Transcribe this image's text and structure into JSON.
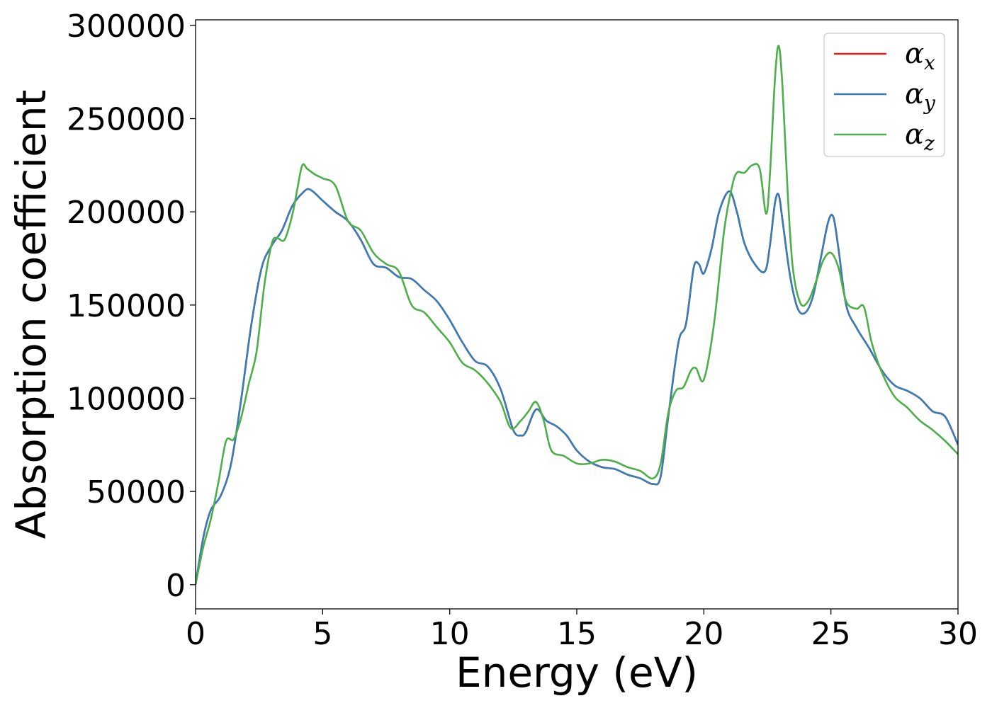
{
  "chart_data": {
    "type": "line",
    "title": "",
    "xlabel": "Energy (eV)",
    "ylabel": "Absorption coefficient",
    "xlim": [
      0,
      30
    ],
    "ylim": [
      -13000,
      303000
    ],
    "xticks": [
      0,
      5,
      10,
      15,
      20,
      25,
      30
    ],
    "yticks": [
      0,
      50000,
      100000,
      150000,
      200000,
      250000,
      300000
    ],
    "xtick_labels": [
      "0",
      "5",
      "10",
      "15",
      "20",
      "25",
      "30"
    ],
    "ytick_labels": [
      "0",
      "50000",
      "100000",
      "150000",
      "200000",
      "250000",
      "300000"
    ],
    "grid": false,
    "legend_position": "top-right",
    "legend": [
      {
        "symbol": "α",
        "sub": "x",
        "color": "#e41a1c"
      },
      {
        "symbol": "α",
        "sub": "y",
        "color": "#377eb8"
      },
      {
        "symbol": "α",
        "sub": "z",
        "color": "#4daf4a"
      }
    ],
    "series": [
      {
        "name": "αx",
        "color": "#e41a1c",
        "x": [
          0,
          0.3,
          0.6,
          1.0,
          1.4,
          1.8,
          2.2,
          2.6,
          3.0,
          3.4,
          3.8,
          4.2,
          4.5,
          5.0,
          5.5,
          6.0,
          6.5,
          7.0,
          7.5,
          8.0,
          8.5,
          9.0,
          9.5,
          10.0,
          10.5,
          11.0,
          11.5,
          12.0,
          12.5,
          12.8,
          13.0,
          13.4,
          13.8,
          14.2,
          14.6,
          15.0,
          15.5,
          16.0,
          16.5,
          17.0,
          17.5,
          18.0,
          18.3,
          18.6,
          19.0,
          19.3,
          19.6,
          19.8,
          20.0,
          20.3,
          20.6,
          21.0,
          21.3,
          21.6,
          22.0,
          22.4,
          22.6,
          22.8,
          22.95,
          23.1,
          23.4,
          23.7,
          24.0,
          24.3,
          24.6,
          24.9,
          25.1,
          25.3,
          25.6,
          26.0,
          26.5,
          27.0,
          27.5,
          28.0,
          28.5,
          29.0,
          29.5,
          30.0
        ],
        "values": [
          0,
          25000,
          40000,
          48000,
          65000,
          100000,
          140000,
          170000,
          182000,
          190000,
          203000,
          210000,
          212000,
          206000,
          200000,
          195000,
          185000,
          172000,
          170000,
          165000,
          164000,
          158000,
          152000,
          142000,
          130000,
          120000,
          117000,
          105000,
          83000,
          80000,
          82000,
          94000,
          88000,
          85000,
          80000,
          72000,
          66000,
          63000,
          62000,
          59000,
          57000,
          54000,
          58000,
          90000,
          130000,
          140000,
          170000,
          172000,
          167000,
          180000,
          200000,
          211000,
          200000,
          183000,
          172000,
          168000,
          182000,
          205000,
          209000,
          195000,
          165000,
          148000,
          146000,
          155000,
          175000,
          195000,
          197000,
          180000,
          150000,
          138000,
          127000,
          115000,
          107000,
          104000,
          100000,
          93000,
          90000,
          75000
        ]
      },
      {
        "name": "αy",
        "color": "#377eb8",
        "x": [
          0,
          0.3,
          0.6,
          1.0,
          1.4,
          1.8,
          2.2,
          2.6,
          3.0,
          3.4,
          3.8,
          4.2,
          4.5,
          5.0,
          5.5,
          6.0,
          6.5,
          7.0,
          7.5,
          8.0,
          8.5,
          9.0,
          9.5,
          10.0,
          10.5,
          11.0,
          11.5,
          12.0,
          12.5,
          12.8,
          13.0,
          13.4,
          13.8,
          14.2,
          14.6,
          15.0,
          15.5,
          16.0,
          16.5,
          17.0,
          17.5,
          18.0,
          18.3,
          18.6,
          19.0,
          19.3,
          19.6,
          19.8,
          20.0,
          20.3,
          20.6,
          21.0,
          21.3,
          21.6,
          22.0,
          22.4,
          22.6,
          22.8,
          22.95,
          23.1,
          23.4,
          23.7,
          24.0,
          24.3,
          24.6,
          24.9,
          25.1,
          25.3,
          25.6,
          26.0,
          26.5,
          27.0,
          27.5,
          28.0,
          28.5,
          29.0,
          29.5,
          30.0
        ],
        "values": [
          0,
          25000,
          40000,
          48000,
          65000,
          100000,
          140000,
          170000,
          182000,
          190000,
          203000,
          210000,
          212000,
          206000,
          200000,
          195000,
          185000,
          172000,
          170000,
          165000,
          164000,
          158000,
          152000,
          142000,
          130000,
          120000,
          117000,
          105000,
          83000,
          80000,
          82000,
          94000,
          88000,
          85000,
          80000,
          72000,
          66000,
          63000,
          62000,
          59000,
          57000,
          54000,
          58000,
          90000,
          130000,
          140000,
          170000,
          172000,
          167000,
          180000,
          200000,
          211000,
          200000,
          183000,
          172000,
          168000,
          182000,
          205000,
          209000,
          195000,
          165000,
          148000,
          146000,
          155000,
          175000,
          195000,
          197000,
          180000,
          150000,
          138000,
          127000,
          115000,
          107000,
          104000,
          100000,
          93000,
          90000,
          75000
        ]
      },
      {
        "name": "αz",
        "color": "#4daf4a",
        "x": [
          0,
          0.3,
          0.6,
          0.9,
          1.2,
          1.5,
          1.8,
          2.1,
          2.4,
          2.7,
          3.0,
          3.2,
          3.5,
          3.8,
          4.0,
          4.2,
          4.4,
          4.7,
          5.0,
          5.5,
          6.0,
          6.5,
          7.0,
          7.5,
          8.0,
          8.5,
          9.0,
          9.5,
          10.0,
          10.5,
          11.0,
          11.5,
          12.0,
          12.4,
          12.8,
          13.1,
          13.4,
          13.7,
          14.0,
          14.5,
          15.0,
          15.5,
          16.0,
          16.5,
          17.0,
          17.5,
          18.0,
          18.3,
          18.6,
          18.9,
          19.2,
          19.5,
          19.7,
          20.0,
          20.4,
          20.8,
          21.1,
          21.3,
          21.6,
          21.9,
          22.2,
          22.45,
          22.6,
          22.8,
          22.95,
          23.1,
          23.3,
          23.5,
          23.8,
          24.1,
          24.4,
          24.7,
          25.0,
          25.3,
          25.6,
          26.0,
          26.3,
          26.6,
          27.0,
          27.5,
          28.0,
          28.5,
          29.0,
          29.5,
          30.0
        ],
        "values": [
          0,
          20000,
          35000,
          55000,
          77000,
          78000,
          90000,
          108000,
          125000,
          160000,
          183000,
          186000,
          185000,
          198000,
          212000,
          225000,
          223000,
          220000,
          218000,
          214000,
          195000,
          190000,
          178000,
          172000,
          168000,
          150000,
          146000,
          138000,
          130000,
          119000,
          115000,
          108000,
          98000,
          84000,
          88000,
          93000,
          98000,
          88000,
          72000,
          69000,
          65000,
          65000,
          67000,
          66000,
          63000,
          61000,
          57000,
          65000,
          92000,
          104000,
          106000,
          115000,
          116000,
          110000,
          140000,
          190000,
          213000,
          221000,
          221000,
          225000,
          223000,
          199000,
          220000,
          272000,
          289000,
          266000,
          210000,
          170000,
          151000,
          152000,
          162000,
          174000,
          178000,
          170000,
          152000,
          148000,
          149000,
          130000,
          114000,
          101000,
          95000,
          88000,
          83000,
          77000,
          70000
        ]
      }
    ]
  }
}
